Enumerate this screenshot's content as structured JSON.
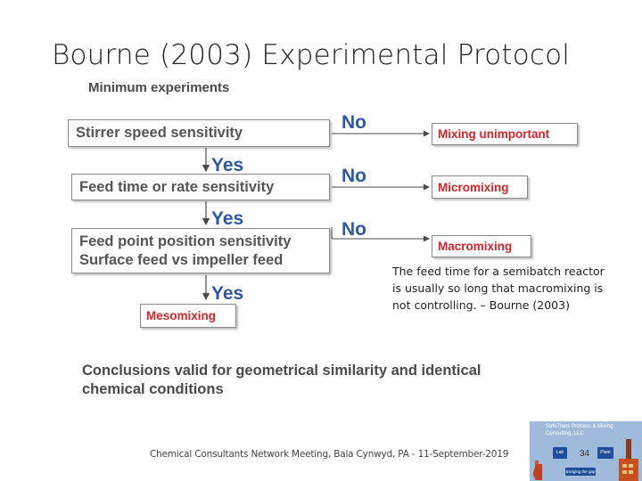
{
  "slide": {
    "title": "Bourne (2003) Experimental Protocol",
    "subheading": "Minimum experiments"
  },
  "flow": {
    "stirrer_box": "Stirrer speed sensitivity",
    "feed_time_box": "Feed time or rate sensitivity",
    "feed_point_line1": "Feed point position sensitivity",
    "feed_point_line2": "Surface feed vs impeller feed",
    "no_label": "No",
    "yes_label": "Yes",
    "mixing_unimportant": "Mixing unimportant",
    "micromixing": "Micromixing",
    "macromixing": "Macromixing",
    "mesomixing": "Mesomixing"
  },
  "note": "The feed time for a semibatch reactor is usually so long that macromixing is not controlling. – Bourne (2003)",
  "conclusion": "Conclusions valid for geometrical similarity and identical chemical conditions",
  "footer": "Chemical Consultants Network Meeting, Bala Cynwyd, PA - 11-September-2019",
  "page_number": "34",
  "logo": {
    "name": "SafeTrans Process & Mixing Consulting, LLC",
    "chip_left": "Lab",
    "chip_right": "Plant",
    "tagline": "Bridging the gap"
  },
  "colors": {
    "answer_blue": "#2d58a6",
    "outcome_red": "#d8232a",
    "logo_bg": "#9fbbdb"
  }
}
